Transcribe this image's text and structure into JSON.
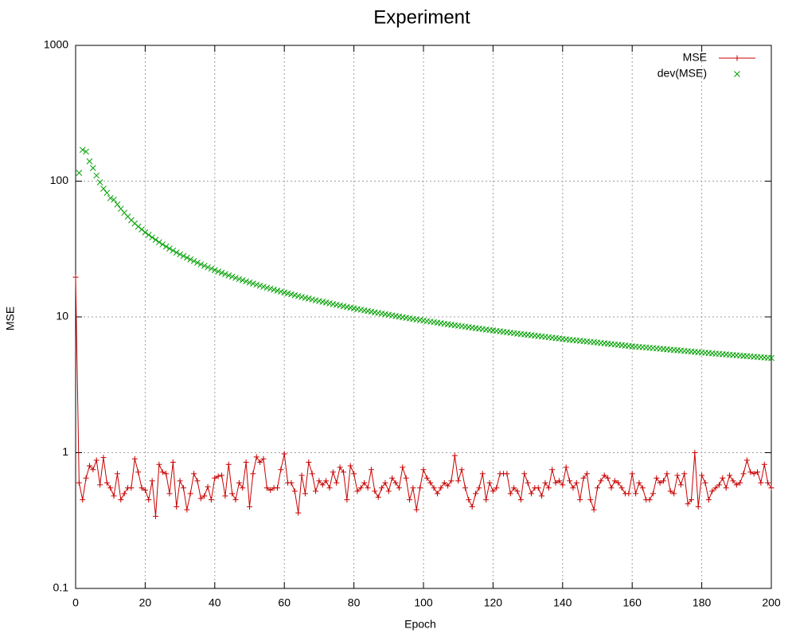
{
  "chart_data": {
    "type": "line",
    "title": "Experiment",
    "x_label": "Epoch",
    "y_label": "MSE",
    "xlim": [
      0,
      200
    ],
    "xticks": [
      0,
      20,
      40,
      60,
      80,
      100,
      120,
      140,
      160,
      180,
      200
    ],
    "ylim": [
      0.1,
      1000
    ],
    "yticks": [
      0.1,
      1,
      10,
      100,
      1000
    ],
    "yscale": "log",
    "grid": true,
    "legend": "top-right",
    "series": [
      {
        "name": "MSE",
        "color": "#c80000",
        "style": "linespoints",
        "x": [
          0,
          1,
          2,
          3,
          4,
          5,
          6,
          7,
          8,
          9,
          10,
          11,
          12,
          13,
          14,
          15,
          16,
          17,
          18,
          19,
          20,
          21,
          22,
          23,
          24,
          25,
          26,
          27,
          28,
          29,
          30,
          31,
          32,
          33,
          34,
          35,
          36,
          37,
          38,
          39,
          40,
          41,
          42,
          43,
          44,
          45,
          46,
          47,
          48,
          49,
          50,
          51,
          52,
          53,
          54,
          55,
          56,
          57,
          58,
          59,
          60,
          61,
          62,
          63,
          64,
          65,
          66,
          67,
          68,
          69,
          70,
          71,
          72,
          73,
          74,
          75,
          76,
          77,
          78,
          79,
          80,
          81,
          82,
          83,
          84,
          85,
          86,
          87,
          88,
          89,
          90,
          91,
          92,
          93,
          94,
          95,
          96,
          97,
          98,
          99,
          100,
          101,
          102,
          103,
          104,
          105,
          106,
          107,
          108,
          109,
          110,
          111,
          112,
          113,
          114,
          115,
          116,
          117,
          118,
          119,
          120,
          121,
          122,
          123,
          124,
          125,
          126,
          127,
          128,
          129,
          130,
          131,
          132,
          133,
          134,
          135,
          136,
          137,
          138,
          139,
          140,
          141,
          142,
          143,
          144,
          145,
          146,
          147,
          148,
          149,
          150,
          151,
          152,
          153,
          154,
          155,
          156,
          157,
          158,
          159,
          160,
          161,
          162,
          163,
          164,
          165,
          166,
          167,
          168,
          169,
          170,
          171,
          172,
          173,
          174,
          175,
          176,
          177,
          178,
          179,
          180,
          181,
          182,
          183,
          184,
          185,
          186,
          187,
          188,
          189,
          190,
          191,
          192,
          193,
          194,
          195,
          196,
          197,
          198,
          199,
          200
        ],
        "values": [
          19.6,
          0.6,
          0.45,
          0.65,
          0.8,
          0.75,
          0.88,
          0.58,
          0.92,
          0.6,
          0.55,
          0.48,
          0.7,
          0.45,
          0.5,
          0.55,
          0.55,
          0.9,
          0.72,
          0.55,
          0.53,
          0.45,
          0.62,
          0.34,
          0.82,
          0.72,
          0.7,
          0.5,
          0.85,
          0.4,
          0.62,
          0.55,
          0.38,
          0.5,
          0.7,
          0.62,
          0.46,
          0.48,
          0.56,
          0.45,
          0.65,
          0.67,
          0.68,
          0.48,
          0.82,
          0.5,
          0.45,
          0.6,
          0.55,
          0.85,
          0.4,
          0.7,
          0.93,
          0.85,
          0.9,
          0.55,
          0.53,
          0.55,
          0.55,
          0.75,
          0.98,
          0.6,
          0.6,
          0.52,
          0.36,
          0.68,
          0.5,
          0.85,
          0.7,
          0.52,
          0.62,
          0.58,
          0.62,
          0.55,
          0.72,
          0.6,
          0.78,
          0.72,
          0.45,
          0.8,
          0.7,
          0.52,
          0.55,
          0.6,
          0.55,
          0.75,
          0.52,
          0.47,
          0.55,
          0.6,
          0.52,
          0.65,
          0.6,
          0.55,
          0.78,
          0.65,
          0.45,
          0.55,
          0.38,
          0.55,
          0.75,
          0.65,
          0.6,
          0.55,
          0.5,
          0.55,
          0.6,
          0.57,
          0.62,
          0.95,
          0.62,
          0.75,
          0.55,
          0.45,
          0.4,
          0.5,
          0.55,
          0.7,
          0.45,
          0.6,
          0.52,
          0.55,
          0.7,
          0.7,
          0.7,
          0.5,
          0.55,
          0.52,
          0.45,
          0.7,
          0.6,
          0.5,
          0.55,
          0.55,
          0.48,
          0.6,
          0.55,
          0.75,
          0.6,
          0.62,
          0.58,
          0.78,
          0.62,
          0.55,
          0.6,
          0.45,
          0.65,
          0.7,
          0.45,
          0.38,
          0.55,
          0.62,
          0.68,
          0.65,
          0.55,
          0.62,
          0.6,
          0.55,
          0.5,
          0.5,
          0.7,
          0.5,
          0.6,
          0.55,
          0.45,
          0.45,
          0.5,
          0.65,
          0.6,
          0.62,
          0.7,
          0.52,
          0.5,
          0.68,
          0.58,
          0.7,
          0.42,
          0.45,
          1.0,
          0.4,
          0.68,
          0.6,
          0.45,
          0.52,
          0.55,
          0.58,
          0.65,
          0.55,
          0.68,
          0.62,
          0.58,
          0.6,
          0.7,
          0.88,
          0.72,
          0.7,
          0.72,
          0.6,
          0.82,
          0.6,
          0.55
        ]
      },
      {
        "name": "dev(MSE)",
        "color": "#00a000",
        "style": "points",
        "x": [
          1,
          2,
          3,
          4,
          5,
          6,
          7,
          8,
          9,
          10,
          11,
          12,
          13,
          14,
          15,
          16,
          17,
          18,
          19,
          20,
          21,
          22,
          23,
          24,
          25,
          26,
          27,
          28,
          29,
          30,
          31,
          32,
          33,
          34,
          35,
          36,
          37,
          38,
          39,
          40,
          41,
          42,
          43,
          44,
          45,
          46,
          47,
          48,
          49,
          50,
          51,
          52,
          53,
          54,
          55,
          56,
          57,
          58,
          59,
          60,
          61,
          62,
          63,
          64,
          65,
          66,
          67,
          68,
          69,
          70,
          71,
          72,
          73,
          74,
          75,
          76,
          77,
          78,
          79,
          80,
          81,
          82,
          83,
          84,
          85,
          86,
          87,
          88,
          89,
          90,
          91,
          92,
          93,
          94,
          95,
          96,
          97,
          98,
          99,
          100,
          101,
          102,
          103,
          104,
          105,
          106,
          107,
          108,
          109,
          110,
          111,
          112,
          113,
          114,
          115,
          116,
          117,
          118,
          119,
          120,
          121,
          122,
          123,
          124,
          125,
          126,
          127,
          128,
          129,
          130,
          131,
          132,
          133,
          134,
          135,
          136,
          137,
          138,
          139,
          140,
          141,
          142,
          143,
          144,
          145,
          146,
          147,
          148,
          149,
          150,
          151,
          152,
          153,
          154,
          155,
          156,
          157,
          158,
          159,
          160,
          161,
          162,
          163,
          164,
          165,
          166,
          167,
          168,
          169,
          170,
          171,
          172,
          173,
          174,
          175,
          176,
          177,
          178,
          179,
          180,
          181,
          182,
          183,
          184,
          185,
          186,
          187,
          188,
          189,
          190,
          191,
          192,
          193,
          194,
          195,
          196,
          197,
          198,
          199,
          200
        ],
        "values": [
          115,
          170,
          165,
          140,
          125,
          110,
          98,
          88,
          82,
          75,
          73,
          67.4,
          62.6,
          58.5,
          54.8,
          51.6,
          48.8,
          46.3,
          44.1,
          42,
          40.2,
          38.5,
          37,
          35.5,
          34.2,
          33,
          31.9,
          30.8,
          29.8,
          28.9,
          28.1,
          27.3,
          26.5,
          25.8,
          25.1,
          24.4,
          23.8,
          23.2,
          22.7,
          22.1,
          21.6,
          21.12,
          20.66,
          20.22,
          19.8,
          19.4,
          19.01,
          18.64,
          18.28,
          17.94,
          17.61,
          17.29,
          16.98,
          16.69,
          16.41,
          16.14,
          15.88,
          15.62,
          15.37,
          15.13,
          14.9,
          14.67,
          14.45,
          14.24,
          14.03,
          13.83,
          13.64,
          13.45,
          13.27,
          13.09,
          12.92,
          12.75,
          12.59,
          12.43,
          12.28,
          12.13,
          11.98,
          11.84,
          11.7,
          11.56,
          11.43,
          11.3,
          11.17,
          11.05,
          10.93,
          10.81,
          10.69,
          10.58,
          10.47,
          10.36,
          10.25,
          10.15,
          10.05,
          9.95,
          9.85,
          9.76,
          9.67,
          9.58,
          9.49,
          9.4,
          9.31,
          9.23,
          9.15,
          9.07,
          8.99,
          8.91,
          8.83,
          8.75,
          8.68,
          8.61,
          8.54,
          8.47,
          8.4,
          8.33,
          8.26,
          8.19,
          8.13,
          8.07,
          8.01,
          7.95,
          7.89,
          7.83,
          7.77,
          7.71,
          7.65,
          7.59,
          7.53,
          7.48,
          7.43,
          7.38,
          7.33,
          7.28,
          7.23,
          7.18,
          7.13,
          7.08,
          7.03,
          6.98,
          6.93,
          6.88,
          6.83,
          6.79,
          6.75,
          6.71,
          6.67,
          6.63,
          6.59,
          6.55,
          6.51,
          6.47,
          6.43,
          6.39,
          6.35,
          6.31,
          6.27,
          6.23,
          6.19,
          6.15,
          6.11,
          6.07,
          6.04,
          6.01,
          5.98,
          5.95,
          5.92,
          5.89,
          5.86,
          5.83,
          5.8,
          5.77,
          5.74,
          5.71,
          5.68,
          5.65,
          5.62,
          5.59,
          5.56,
          5.53,
          5.5,
          5.47,
          5.44,
          5.42,
          5.39,
          5.36,
          5.34,
          5.31,
          5.29,
          5.26,
          5.24,
          5.21,
          5.19,
          5.16,
          5.14,
          5.12,
          5.09,
          5.07,
          5.05,
          5.02,
          5,
          4.98
        ]
      }
    ]
  }
}
